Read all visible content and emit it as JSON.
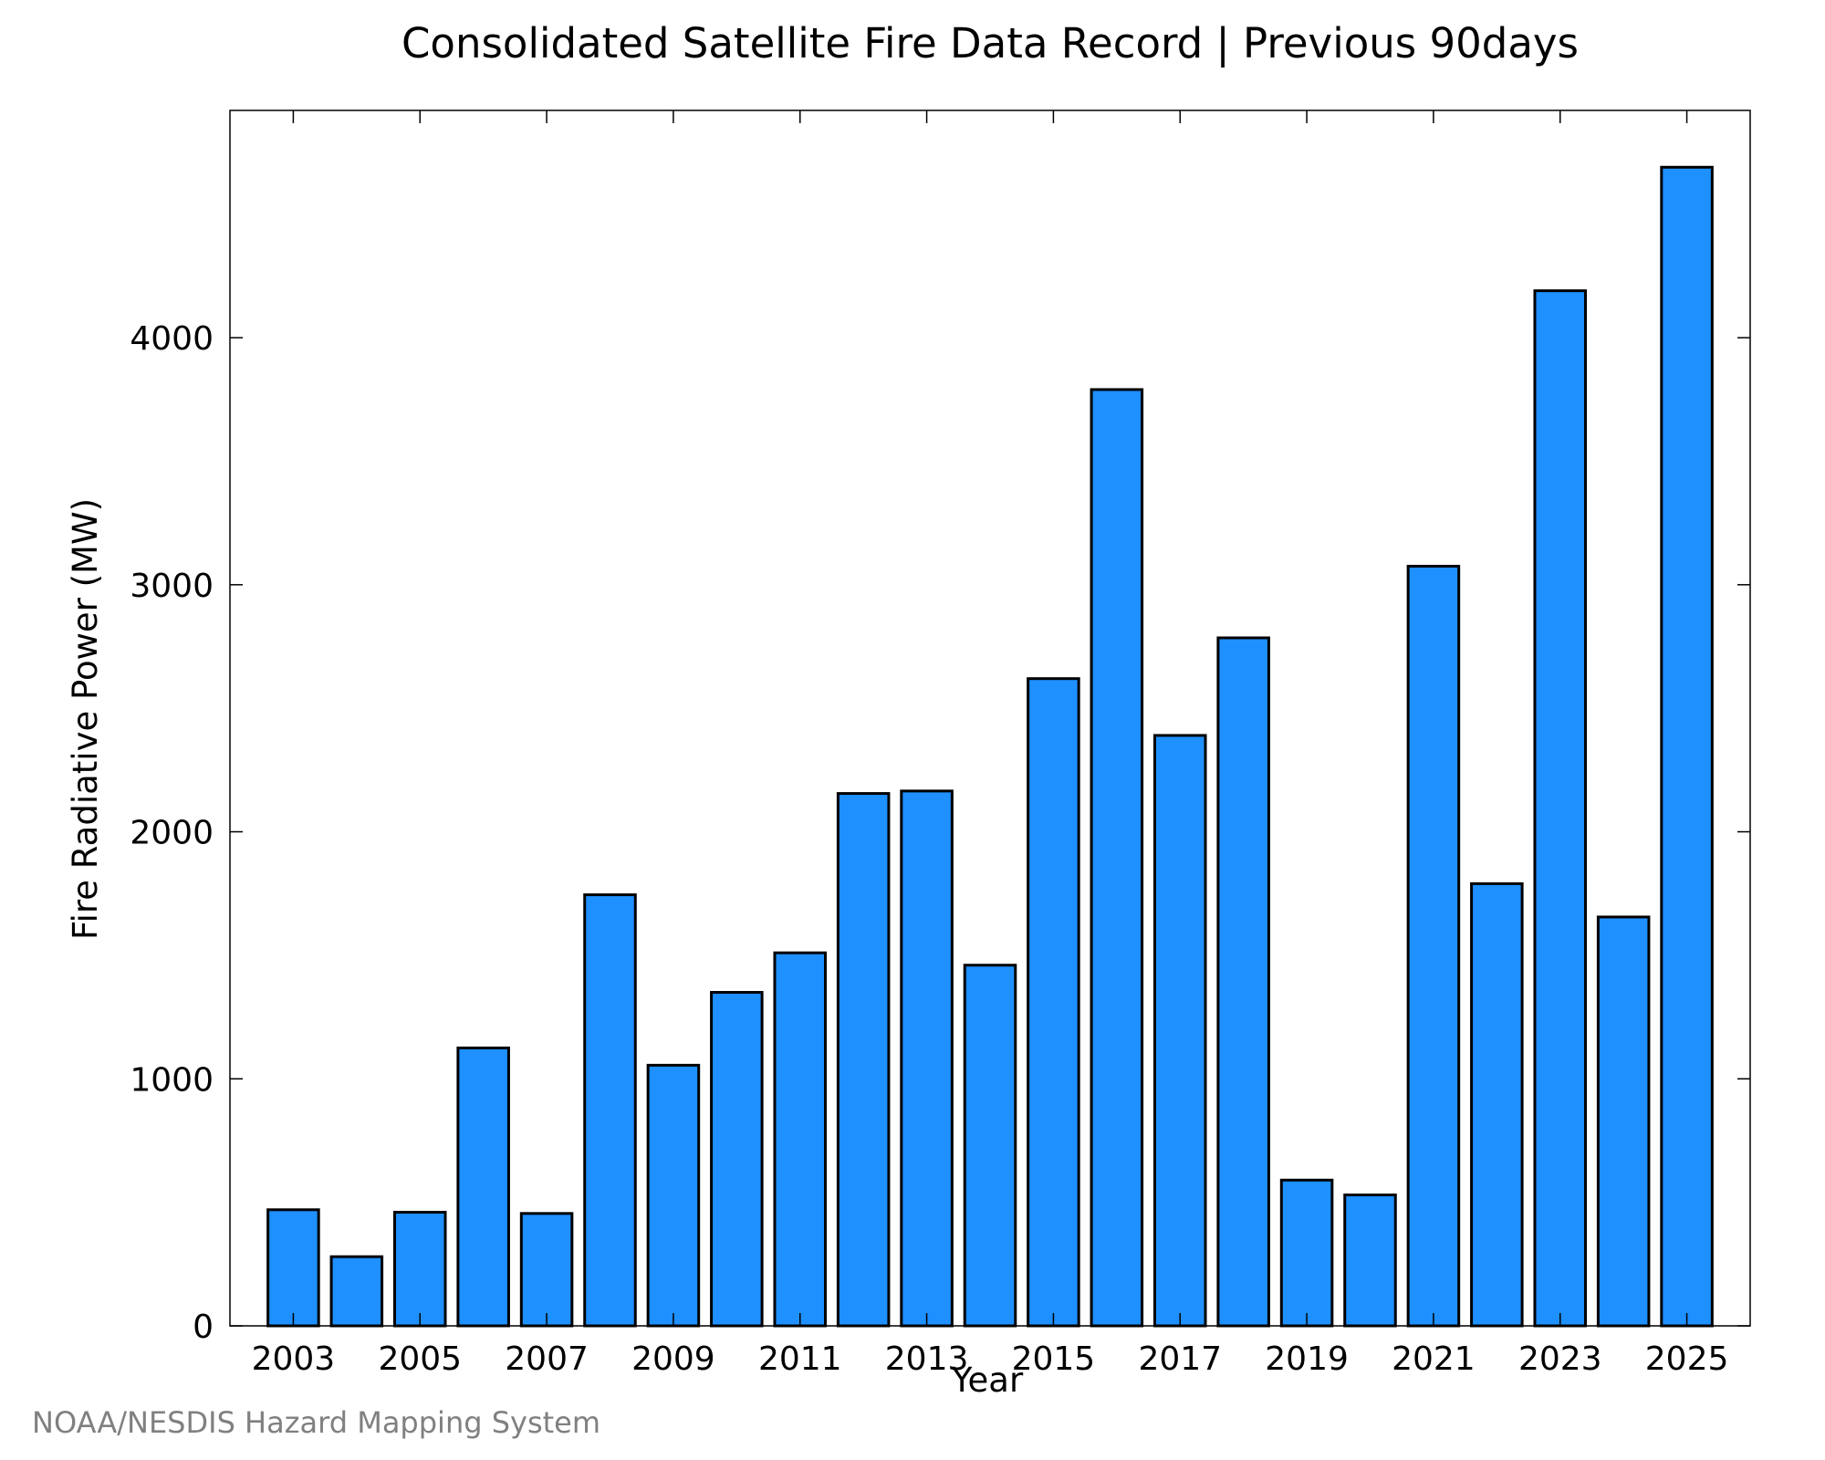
{
  "chart_data": {
    "type": "bar",
    "title": "Consolidated Satellite Fire Data Record | Previous 90days",
    "xlabel": "Year",
    "ylabel": "Fire Radiative Power (MW)",
    "categories": [
      2003,
      2004,
      2005,
      2006,
      2007,
      2008,
      2009,
      2010,
      2011,
      2012,
      2013,
      2014,
      2015,
      2016,
      2017,
      2018,
      2019,
      2020,
      2021,
      2022,
      2023,
      2024,
      2025
    ],
    "values": [
      470,
      280,
      460,
      1125,
      455,
      1745,
      1055,
      1350,
      1510,
      2155,
      2165,
      1460,
      2620,
      3790,
      2390,
      2785,
      590,
      530,
      3075,
      1790,
      4190,
      1655,
      4690
    ],
    "xticks": [
      "2003",
      "2005",
      "2007",
      "2009",
      "2011",
      "2013",
      "2015",
      "2017",
      "2019",
      "2021",
      "2023",
      "2025"
    ],
    "yticks": [
      0,
      1000,
      2000,
      3000,
      4000
    ],
    "ylim": [
      0,
      4920
    ],
    "xlim": [
      2002.0,
      2026.0
    ],
    "grid": false,
    "legend": "none",
    "bar_color": "#1e90ff",
    "edge_color": "#000000"
  },
  "footer": "NOAA/NESDIS Hazard Mapping System"
}
